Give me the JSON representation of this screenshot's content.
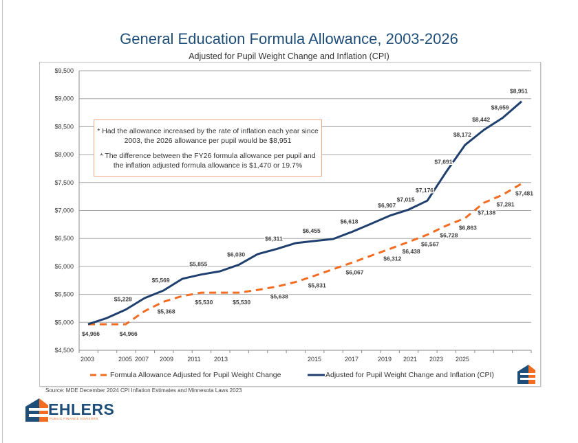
{
  "title": "General Education Formula Allowance, 2003-2026",
  "subtitle": "Adjusted for Pupil Weight Change and Inflation (CPI)",
  "note": {
    "line1": "* Had the allowance increased by the rate of inflation each year since 2003, the 2026 allowance per pupil would be $8,951",
    "line2": "* The difference between the FY26 formula allowance per pupil and the inflation adjusted formula allowance is $1,470 or 19.7%"
  },
  "source": "Source: MDE December 2024 CPI Inflation Estimates and Minnesota Laws 2023",
  "logo": {
    "name": "EHLERS",
    "tagline": "PUBLIC FINANCE ADVISORS"
  },
  "colors": {
    "blue": "#1f3f6e",
    "orange": "#f26c22",
    "title": "#1f4e79"
  },
  "chart_data": {
    "type": "line",
    "title": "General Education Formula Allowance, 2003-2026",
    "subtitle": "Adjusted for Pupil Weight Change and Inflation (CPI)",
    "x": [
      2003,
      2004,
      2005,
      2006,
      2007,
      2008,
      2009,
      2010,
      2011,
      2012,
      2013,
      2014,
      2015,
      2016,
      2017,
      2018,
      2019,
      2020,
      2021,
      2022,
      2023,
      2024,
      2025,
      2026
    ],
    "x_tick_labels": [
      "2003",
      "2005",
      "2007",
      "2009",
      "2011",
      "2013",
      "2015",
      "2017",
      "2019",
      "2021",
      "2023",
      "2025"
    ],
    "ylim": [
      4500,
      9500
    ],
    "y_ticks": [
      "$4,500",
      "$5,000",
      "$5,500",
      "$6,000",
      "$6,500",
      "$7,000",
      "$7,500",
      "$8,000",
      "$8,500",
      "$9,000",
      "$9,500"
    ],
    "grid": true,
    "legend": "bottom",
    "series": [
      {
        "name": "Formula Allowance Adjusted for Pupil Weight Change",
        "style": "dashed",
        "color": "#f26c22",
        "values": [
          4966,
          4966,
          4966,
          5200,
          5368,
          5470,
          5530,
          5530,
          5530,
          5580,
          5638,
          5720,
          5831,
          5950,
          6067,
          6190,
          6312,
          6438,
          6567,
          6728,
          6863,
          7138,
          7281,
          7481
        ],
        "labels": [
          "$4,966",
          null,
          "$4,966",
          null,
          "$5,368",
          null,
          "$5,530",
          null,
          "$5,530",
          null,
          "$5,638",
          null,
          "$5,831",
          null,
          "$6,067",
          null,
          "$6,312",
          "$6,438",
          "$6,567",
          "$6,728",
          "$6,863",
          "$7,138",
          "$7,281",
          "$7,481"
        ]
      },
      {
        "name": "Adjusted for Pupil Weight Change and Inflation (CPI)",
        "style": "solid",
        "color": "#1f3f6e",
        "values": [
          4966,
          5077,
          5228,
          5434,
          5569,
          5778,
          5855,
          5913,
          6030,
          6220,
          6311,
          6416,
          6455,
          6490,
          6618,
          6760,
          6907,
          7015,
          7176,
          7691,
          8172,
          8442,
          8659,
          8951
        ],
        "labels": [
          null,
          null,
          "$5,228",
          null,
          "$5,569",
          null,
          "$5,855",
          null,
          "$6,030",
          null,
          "$6,311",
          null,
          "$6,455",
          null,
          "$6,618",
          null,
          "$6,907",
          "$7,015",
          "$7,176",
          "$7,691",
          "$8,172",
          "$8,442",
          "$8,659",
          "$8,951"
        ]
      }
    ]
  }
}
